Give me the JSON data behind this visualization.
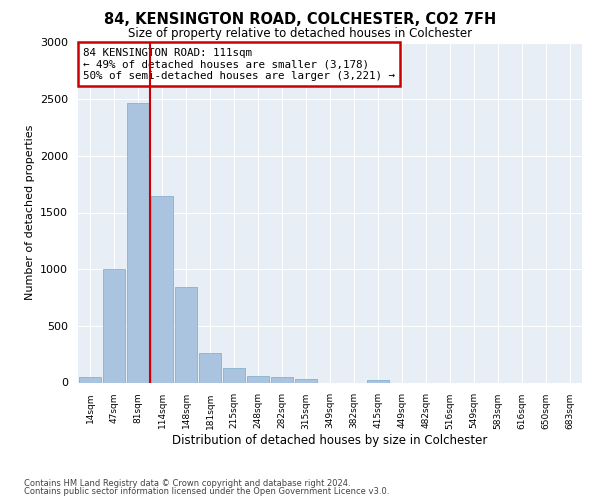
{
  "title": "84, KENSINGTON ROAD, COLCHESTER, CO2 7FH",
  "subtitle": "Size of property relative to detached houses in Colchester",
  "xlabel": "Distribution of detached houses by size in Colchester",
  "ylabel": "Number of detached properties",
  "categories": [
    "14sqm",
    "47sqm",
    "81sqm",
    "114sqm",
    "148sqm",
    "181sqm",
    "215sqm",
    "248sqm",
    "282sqm",
    "315sqm",
    "349sqm",
    "382sqm",
    "415sqm",
    "449sqm",
    "482sqm",
    "516sqm",
    "549sqm",
    "583sqm",
    "616sqm",
    "650sqm",
    "683sqm"
  ],
  "values": [
    50,
    1000,
    2470,
    1650,
    840,
    260,
    130,
    55,
    45,
    35,
    0,
    0,
    25,
    0,
    0,
    0,
    0,
    0,
    0,
    0,
    0
  ],
  "bar_color": "#aac4e0",
  "bar_edge_color": "#7aaac8",
  "vline_color": "#cc0000",
  "vline_x": 2.5,
  "annotation_text": "84 KENSINGTON ROAD: 111sqm\n← 49% of detached houses are smaller (3,178)\n50% of semi-detached houses are larger (3,221) →",
  "annotation_box_color": "#cc0000",
  "ylim": [
    0,
    3000
  ],
  "yticks": [
    0,
    500,
    1000,
    1500,
    2000,
    2500,
    3000
  ],
  "background_color": "#e8eef5",
  "grid_color": "#ffffff",
  "footer_line1": "Contains HM Land Registry data © Crown copyright and database right 2024.",
  "footer_line2": "Contains public sector information licensed under the Open Government Licence v3.0."
}
